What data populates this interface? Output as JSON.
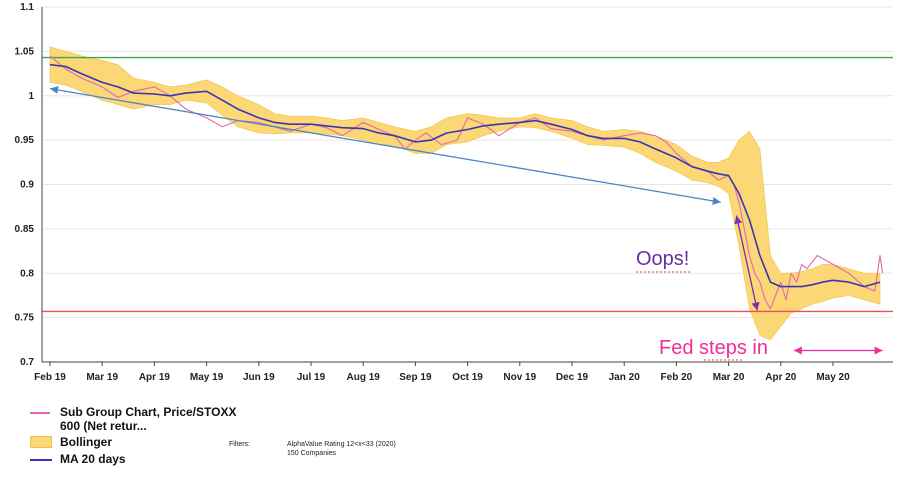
{
  "chart_data": {
    "type": "line",
    "x_labels": [
      "Feb 19",
      "Mar 19",
      "Apr 19",
      "May 19",
      "Jun 19",
      "Jul 19",
      "Aug 19",
      "Sep 19",
      "Oct 19",
      "Nov 19",
      "Dec 19",
      "Jan 20",
      "Feb 20",
      "Mar 20",
      "Apr 20",
      "May 20"
    ],
    "ylim": [
      0.7,
      1.1
    ],
    "y_ticks": [
      "0.7",
      "0.75",
      "0.8",
      "0.85",
      "0.9",
      "0.95",
      "1",
      "1.05",
      "1.1"
    ],
    "grid": "horizontal",
    "legend_position": "bottom-left",
    "series": [
      {
        "name": "Sub Group Chart, Price/STOXX 600 (Net retur...",
        "color": "#e06ab0",
        "x": [
          0,
          0.3,
          0.6,
          1.0,
          1.3,
          1.6,
          2.0,
          2.3,
          2.6,
          3.0,
          3.3,
          3.6,
          4.0,
          4.3,
          4.6,
          5.0,
          5.3,
          5.6,
          6.0,
          6.3,
          6.6,
          6.8,
          7.0,
          7.2,
          7.5,
          7.8,
          8.0,
          8.3,
          8.6,
          9.0,
          9.3,
          9.6,
          10.0,
          10.3,
          10.6,
          11.0,
          11.3,
          11.6,
          11.8,
          12.0,
          12.3,
          12.6,
          12.8,
          13.0,
          13.1,
          13.2,
          13.3,
          13.4,
          13.5,
          13.6,
          13.7,
          13.8,
          13.9,
          14.0,
          14.1,
          14.2,
          14.3,
          14.4,
          14.5,
          14.7,
          15.0,
          15.3,
          15.6,
          15.8,
          15.9,
          15.95
        ],
        "y": [
          1.045,
          1.03,
          1.02,
          1.01,
          0.998,
          1.005,
          1.01,
          1.0,
          0.985,
          0.975,
          0.965,
          0.972,
          0.97,
          0.965,
          0.96,
          0.968,
          0.964,
          0.955,
          0.97,
          0.962,
          0.955,
          0.94,
          0.95,
          0.958,
          0.945,
          0.95,
          0.975,
          0.968,
          0.955,
          0.97,
          0.975,
          0.963,
          0.96,
          0.955,
          0.95,
          0.955,
          0.958,
          0.955,
          0.948,
          0.935,
          0.92,
          0.915,
          0.905,
          0.91,
          0.9,
          0.88,
          0.85,
          0.82,
          0.8,
          0.79,
          0.77,
          0.76,
          0.775,
          0.79,
          0.77,
          0.8,
          0.79,
          0.81,
          0.805,
          0.82,
          0.81,
          0.8,
          0.785,
          0.78,
          0.82,
          0.8
        ]
      },
      {
        "name": "MA 20 days",
        "color": "#3a35b3",
        "x": [
          0,
          0.3,
          0.6,
          1.0,
          1.3,
          1.6,
          2.0,
          2.3,
          2.6,
          3.0,
          3.3,
          3.6,
          4.0,
          4.3,
          4.6,
          5.0,
          5.3,
          5.6,
          6.0,
          6.3,
          6.6,
          7.0,
          7.3,
          7.6,
          8.0,
          8.3,
          8.6,
          9.0,
          9.3,
          9.6,
          10.0,
          10.3,
          10.6,
          11.0,
          11.3,
          11.6,
          12.0,
          12.3,
          12.6,
          12.8,
          13.0,
          13.2,
          13.4,
          13.6,
          13.8,
          14.0,
          14.2,
          14.4,
          14.6,
          14.8,
          15.0,
          15.3,
          15.6,
          15.9
        ],
        "y": [
          1.035,
          1.033,
          1.025,
          1.015,
          1.01,
          1.003,
          1.002,
          1.0,
          1.003,
          1.005,
          0.995,
          0.985,
          0.975,
          0.97,
          0.968,
          0.968,
          0.966,
          0.964,
          0.963,
          0.958,
          0.955,
          0.948,
          0.95,
          0.958,
          0.962,
          0.966,
          0.968,
          0.97,
          0.972,
          0.968,
          0.962,
          0.955,
          0.952,
          0.952,
          0.948,
          0.94,
          0.93,
          0.92,
          0.915,
          0.912,
          0.91,
          0.89,
          0.86,
          0.82,
          0.79,
          0.785,
          0.785,
          0.785,
          0.787,
          0.79,
          0.792,
          0.79,
          0.785,
          0.79
        ]
      }
    ],
    "band": {
      "name": "Bollinger",
      "color": "#fbd776",
      "x": [
        0,
        0.3,
        0.6,
        1.0,
        1.3,
        1.6,
        2.0,
        2.3,
        2.6,
        3.0,
        3.3,
        3.6,
        4.0,
        4.3,
        4.6,
        5.0,
        5.3,
        5.6,
        6.0,
        6.3,
        6.6,
        7.0,
        7.3,
        7.6,
        8.0,
        8.3,
        8.6,
        9.0,
        9.3,
        9.6,
        10.0,
        10.3,
        10.6,
        11.0,
        11.3,
        11.6,
        12.0,
        12.3,
        12.6,
        12.8,
        13.0,
        13.2,
        13.4,
        13.6,
        13.8,
        14.0,
        14.2,
        14.4,
        14.6,
        14.8,
        15.0,
        15.3,
        15.6,
        15.9
      ],
      "upper": [
        1.055,
        1.05,
        1.045,
        1.04,
        1.035,
        1.02,
        1.015,
        1.01,
        1.012,
        1.018,
        1.01,
        1.0,
        0.99,
        0.98,
        0.977,
        0.977,
        0.975,
        0.972,
        0.975,
        0.97,
        0.965,
        0.96,
        0.965,
        0.975,
        0.98,
        0.978,
        0.975,
        0.975,
        0.98,
        0.975,
        0.972,
        0.965,
        0.96,
        0.962,
        0.96,
        0.955,
        0.945,
        0.932,
        0.925,
        0.925,
        0.93,
        0.95,
        0.96,
        0.94,
        0.82,
        0.8,
        0.8,
        0.802,
        0.805,
        0.81,
        0.81,
        0.805,
        0.8,
        0.8
      ],
      "lower": [
        1.015,
        1.012,
        1.005,
        0.995,
        0.99,
        0.985,
        0.99,
        0.99,
        0.995,
        0.992,
        0.978,
        0.965,
        0.958,
        0.957,
        0.958,
        0.958,
        0.957,
        0.955,
        0.95,
        0.945,
        0.944,
        0.935,
        0.935,
        0.945,
        0.948,
        0.955,
        0.96,
        0.965,
        0.964,
        0.96,
        0.952,
        0.945,
        0.944,
        0.942,
        0.935,
        0.925,
        0.915,
        0.905,
        0.902,
        0.898,
        0.89,
        0.83,
        0.76,
        0.73,
        0.725,
        0.74,
        0.755,
        0.76,
        0.765,
        0.768,
        0.772,
        0.775,
        0.77,
        0.765
      ]
    },
    "reference_lines": [
      {
        "y": 1.043,
        "color": "#3aa84a"
      },
      {
        "y": 0.757,
        "color": "#ef4b5c"
      }
    ],
    "arrows": [
      {
        "from": [
          0.0,
          1.008
        ],
        "to": [
          12.85,
          0.88
        ],
        "color": "#4a86c6"
      },
      {
        "from": [
          13.15,
          0.865
        ],
        "to": [
          13.55,
          0.758
        ],
        "color": "#7a2fb0"
      },
      {
        "from": [
          14.25,
          0.713
        ],
        "to": [
          15.95,
          0.713
        ],
        "color": "#ee2f95"
      }
    ],
    "annotations": [
      "Oops!",
      "Fed steps in"
    ]
  },
  "legend": {
    "series1_label_line1": "Sub Group Chart, Price/STOXX",
    "series1_label_line2": "600 (Net retur...",
    "band_label": "Bollinger",
    "ma_label": "MA 20 days"
  },
  "filters": {
    "key": "Filters:",
    "line1": "AlphaValue Rating 12<x<33 (2020)",
    "line2": "150 Companies"
  }
}
